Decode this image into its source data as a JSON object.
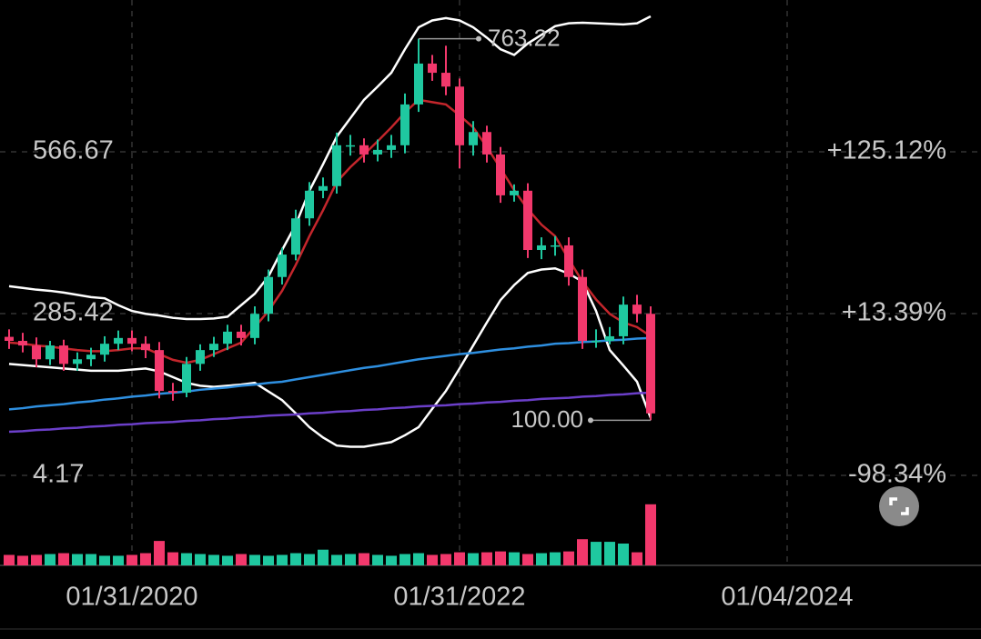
{
  "chart_data": {
    "type": "candlestick",
    "categories": [
      null,
      null,
      null,
      null,
      null,
      null,
      null,
      null,
      null,
      "01/31/2020",
      null,
      null,
      null,
      null,
      null,
      null,
      null,
      null,
      null,
      null,
      null,
      null,
      null,
      null,
      null,
      null,
      null,
      null,
      null,
      null,
      null,
      null,
      null,
      "01/31/2022",
      null,
      null,
      null,
      null,
      null,
      null,
      null,
      null,
      null,
      null,
      null,
      null,
      null,
      null,
      null,
      null,
      null,
      null,
      null,
      null,
      null,
      null,
      null,
      "01/04/2024"
    ],
    "open": [
      245,
      238,
      230,
      206,
      230,
      198,
      206,
      214,
      233,
      243,
      233,
      222,
      151,
      148,
      198,
      222,
      233,
      254,
      243,
      285,
      349,
      388,
      451,
      499,
      507,
      578,
      578,
      562,
      570,
      578,
      649,
      720,
      704,
      680,
      578,
      601,
      562,
      491,
      499,
      396,
      404,
      404,
      349,
      238,
      238,
      246,
      301,
      285,
      null,
      null,
      null,
      null,
      null,
      null,
      null,
      null,
      null,
      null
    ],
    "high": [
      258,
      252,
      244,
      238,
      240,
      218,
      226,
      246,
      256,
      256,
      246,
      236,
      165,
      210,
      232,
      245,
      266,
      266,
      298,
      362,
      400,
      466,
      514,
      522,
      600,
      596,
      590,
      588,
      596,
      668,
      763.22,
      735,
      751,
      694,
      620,
      612,
      575,
      510,
      512,
      418,
      420,
      418,
      362,
      258,
      262,
      315,
      318,
      298,
      null,
      null,
      null,
      null,
      null,
      null,
      null,
      null,
      null,
      null
    ],
    "low": [
      224,
      218,
      192,
      196,
      186,
      186,
      194,
      202,
      222,
      220,
      208,
      138,
      134,
      140,
      186,
      210,
      222,
      230,
      232,
      272,
      336,
      378,
      438,
      486,
      494,
      560,
      548,
      550,
      556,
      564,
      636,
      690,
      665,
      538,
      560,
      548,
      478,
      480,
      382,
      380,
      386,
      334,
      224,
      226,
      232,
      232,
      270,
      100,
      null,
      null,
      null,
      null,
      null,
      null,
      null,
      null,
      null,
      null
    ],
    "close": [
      238,
      230,
      206,
      230,
      198,
      206,
      214,
      233,
      243,
      233,
      222,
      151,
      148,
      198,
      222,
      233,
      254,
      243,
      285,
      349,
      388,
      451,
      499,
      507,
      578,
      578,
      562,
      570,
      578,
      649,
      720,
      704,
      680,
      578,
      601,
      562,
      491,
      499,
      396,
      404,
      404,
      349,
      238,
      238,
      246,
      301,
      285,
      112,
      null,
      null,
      null,
      null,
      null,
      null,
      null,
      null,
      null,
      null
    ],
    "volume": [
      12,
      11,
      12,
      13,
      14,
      13,
      13,
      11,
      11,
      12,
      14,
      28,
      15,
      14,
      13,
      12,
      11,
      13,
      12,
      11,
      12,
      14,
      13,
      18,
      12,
      13,
      14,
      12,
      11,
      13,
      14,
      12,
      13,
      15,
      14,
      15,
      16,
      15,
      13,
      14,
      15,
      16,
      30,
      27,
      27,
      25,
      15,
      70,
      null,
      null,
      null,
      null,
      null,
      null,
      null,
      null,
      null,
      null
    ],
    "volume_lim": [
      0,
      75
    ],
    "up_color": "#1fc8a0",
    "down_color": "#f2386c",
    "overlays": [
      {
        "color": "#ffffff",
        "values": [
          333,
          330,
          327,
          325,
          322,
          318,
          314,
          312,
          300,
          290,
          285,
          282,
          278,
          276,
          276,
          277,
          280,
          300,
          320,
          350,
          396,
          440,
          499,
          545,
          593,
          625,
          657,
          680,
          704,
          745,
          783,
          795,
          799,
          795,
          783,
          765,
          745,
          735,
          755,
          770,
          785,
          790,
          791,
          790,
          789,
          788,
          790,
          802,
          null,
          null,
          null,
          null,
          null,
          null,
          null,
          null,
          null,
          null
        ]
      },
      {
        "color": "#ffffff",
        "values": [
          198,
          196,
          194,
          192,
          190,
          188,
          186,
          186,
          186,
          188,
          190,
          185,
          175,
          165,
          160,
          158,
          160,
          162,
          165,
          150,
          135,
          112,
          88,
          70,
          56,
          54,
          54,
          58,
          62,
          74,
          88,
          120,
          151,
          190,
          230,
          270,
          309,
          335,
          356,
          362,
          364,
          355,
          341,
          290,
          222,
          195,
          167,
          104,
          null,
          null,
          null,
          null,
          null,
          null,
          null,
          null,
          null,
          null
        ]
      },
      {
        "color": "#c4262c",
        "values": [
          235,
          233,
          230,
          228,
          225,
          222,
          220,
          220,
          222,
          225,
          225,
          215,
          205,
          200,
          205,
          215,
          225,
          235,
          262,
          290,
          325,
          370,
          420,
          465,
          514,
          540,
          562,
          585,
          609,
          635,
          657,
          653,
          649,
          630,
          609,
          575,
          538,
          500,
          467,
          440,
          420,
          380,
          341,
          310,
          285,
          270,
          262,
          246,
          null,
          null,
          null,
          null,
          null,
          null,
          null,
          null,
          null,
          null
        ]
      },
      {
        "color": "#2e8fe0",
        "values": [
          119,
          121,
          124,
          126,
          128,
          131,
          133,
          136,
          138,
          141,
          143,
          146,
          148,
          150,
          153,
          155,
          157,
          160,
          162,
          165,
          167,
          171,
          175,
          179,
          183,
          187,
          191,
          194,
          198,
          202,
          206,
          209,
          212,
          215,
          217,
          220,
          223,
          225,
          228,
          230,
          233,
          234,
          236,
          237,
          239,
          240,
          242,
          243,
          null,
          null,
          null,
          null,
          null,
          null,
          null,
          null,
          null,
          null
        ]
      },
      {
        "color": "#6b3fc9",
        "values": [
          80,
          81,
          83,
          84,
          86,
          87,
          89,
          90,
          92,
          93,
          95,
          96,
          97,
          99,
          100,
          102,
          103,
          105,
          106,
          108,
          109,
          110,
          112,
          113,
          115,
          116,
          118,
          119,
          121,
          122,
          124,
          125,
          126,
          128,
          129,
          131,
          132,
          134,
          135,
          137,
          138,
          139,
          141,
          142,
          144,
          145,
          147,
          148,
          null,
          null,
          null,
          null,
          null,
          null,
          null,
          null,
          null,
          null
        ]
      }
    ],
    "ylim": [
      -25.84,
      830.5
    ],
    "yticks": [
      566.67,
      285.42,
      4.17
    ],
    "y2lim": [
      -110.27,
      229.94
    ],
    "y2ticks": [
      {
        "value": 125.12,
        "label": "+125.12%"
      },
      {
        "value": 13.39,
        "label": "+13.39%"
      },
      {
        "value": -98.34,
        "label": "-98.34%"
      }
    ],
    "annotations": [
      {
        "value": 763.22,
        "label": "763.22"
      },
      {
        "value": 100,
        "label": "100.00"
      }
    ],
    "grid": true
  }
}
